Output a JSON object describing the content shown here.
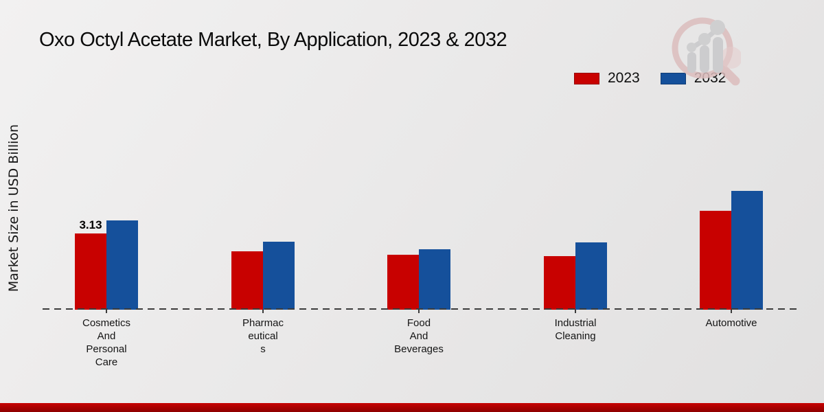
{
  "title": "Oxo Octyl Acetate Market, By Application, 2023 & 2032",
  "ylabel": "Market Size in USD Billion",
  "legend": [
    {
      "label": "2023",
      "color": "#c80100"
    },
    {
      "label": "2032",
      "color": "#15509b"
    }
  ],
  "footer_bar_color": "#b30000",
  "watermark_icon": "magnifier-bar-chart-logo",
  "chart_data": {
    "type": "bar",
    "title": "Oxo Octyl Acetate Market, By Application, 2023 & 2032",
    "xlabel": "",
    "ylabel": "Market Size in USD Billion",
    "categories": [
      "Cosmetics And Personal Care",
      "Pharmaceuticals",
      "Food And Beverages",
      "Industrial Cleaning",
      "Automotive"
    ],
    "categories_display": [
      [
        "Cosmetics",
        "And",
        "Personal",
        "Care"
      ],
      [
        "Pharmac",
        "eutical",
        "s"
      ],
      [
        "Food",
        "And",
        "Beverages"
      ],
      [
        "Industrial",
        "Cleaning"
      ],
      [
        "Automotive"
      ]
    ],
    "series": [
      {
        "name": "2023",
        "color": "#c80100",
        "values": [
          3.13,
          2.4,
          2.26,
          2.2,
          4.06
        ]
      },
      {
        "name": "2032",
        "color": "#15509b",
        "values": [
          3.67,
          2.79,
          2.48,
          2.76,
          4.88
        ]
      }
    ],
    "value_labels": [
      {
        "series": "2023",
        "category_index": 0,
        "text": "3.13"
      }
    ],
    "ylim": [
      0,
      5.5
    ],
    "grid": false,
    "axis_style": "dashed horizontal baseline only",
    "legend_position": "top-right"
  }
}
